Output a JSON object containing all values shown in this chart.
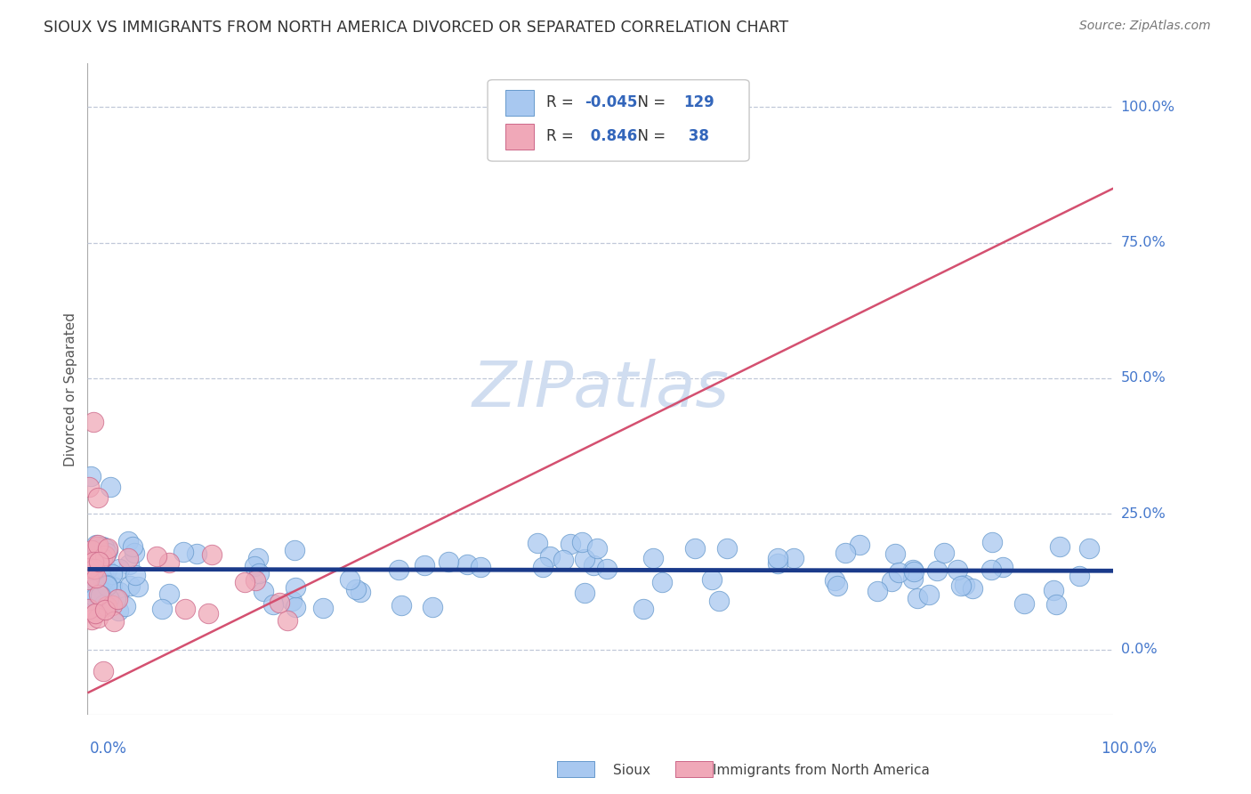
{
  "title": "SIOUX VS IMMIGRANTS FROM NORTH AMERICA DIVORCED OR SEPARATED CORRELATION CHART",
  "source": "Source: ZipAtlas.com",
  "ylabel": "Divorced or Separated",
  "ytick_labels": [
    "0.0%",
    "25.0%",
    "50.0%",
    "75.0%",
    "100.0%"
  ],
  "ytick_values": [
    0.0,
    0.25,
    0.5,
    0.75,
    1.0
  ],
  "legend_label1": "Sioux",
  "legend_label2": "Immigrants from North America",
  "R1": -0.045,
  "N1": 129,
  "R2": 0.846,
  "N2": 38,
  "blue_scatter_color": "#a8c8f0",
  "blue_scatter_edge": "#6699cc",
  "pink_scatter_color": "#f0a8b8",
  "pink_scatter_edge": "#cc6688",
  "blue_line_color": "#1a3a8a",
  "pink_line_color": "#d45070",
  "title_color": "#333333",
  "source_color": "#777777",
  "grid_color": "#c0c8d8",
  "tick_label_color": "#4477cc",
  "ylabel_color": "#555555",
  "watermark_text": "ZIPatlas",
  "watermark_color": "#d0ddf0",
  "legend_text_dark": "#333333",
  "legend_text_blue": "#3366bb",
  "blue_line_y_intercept": 0.148,
  "blue_line_slope": -0.003,
  "pink_line_y_intercept": -0.08,
  "pink_line_slope": 0.93,
  "xlim": [
    0.0,
    1.0
  ],
  "ylim": [
    -0.12,
    1.08
  ]
}
